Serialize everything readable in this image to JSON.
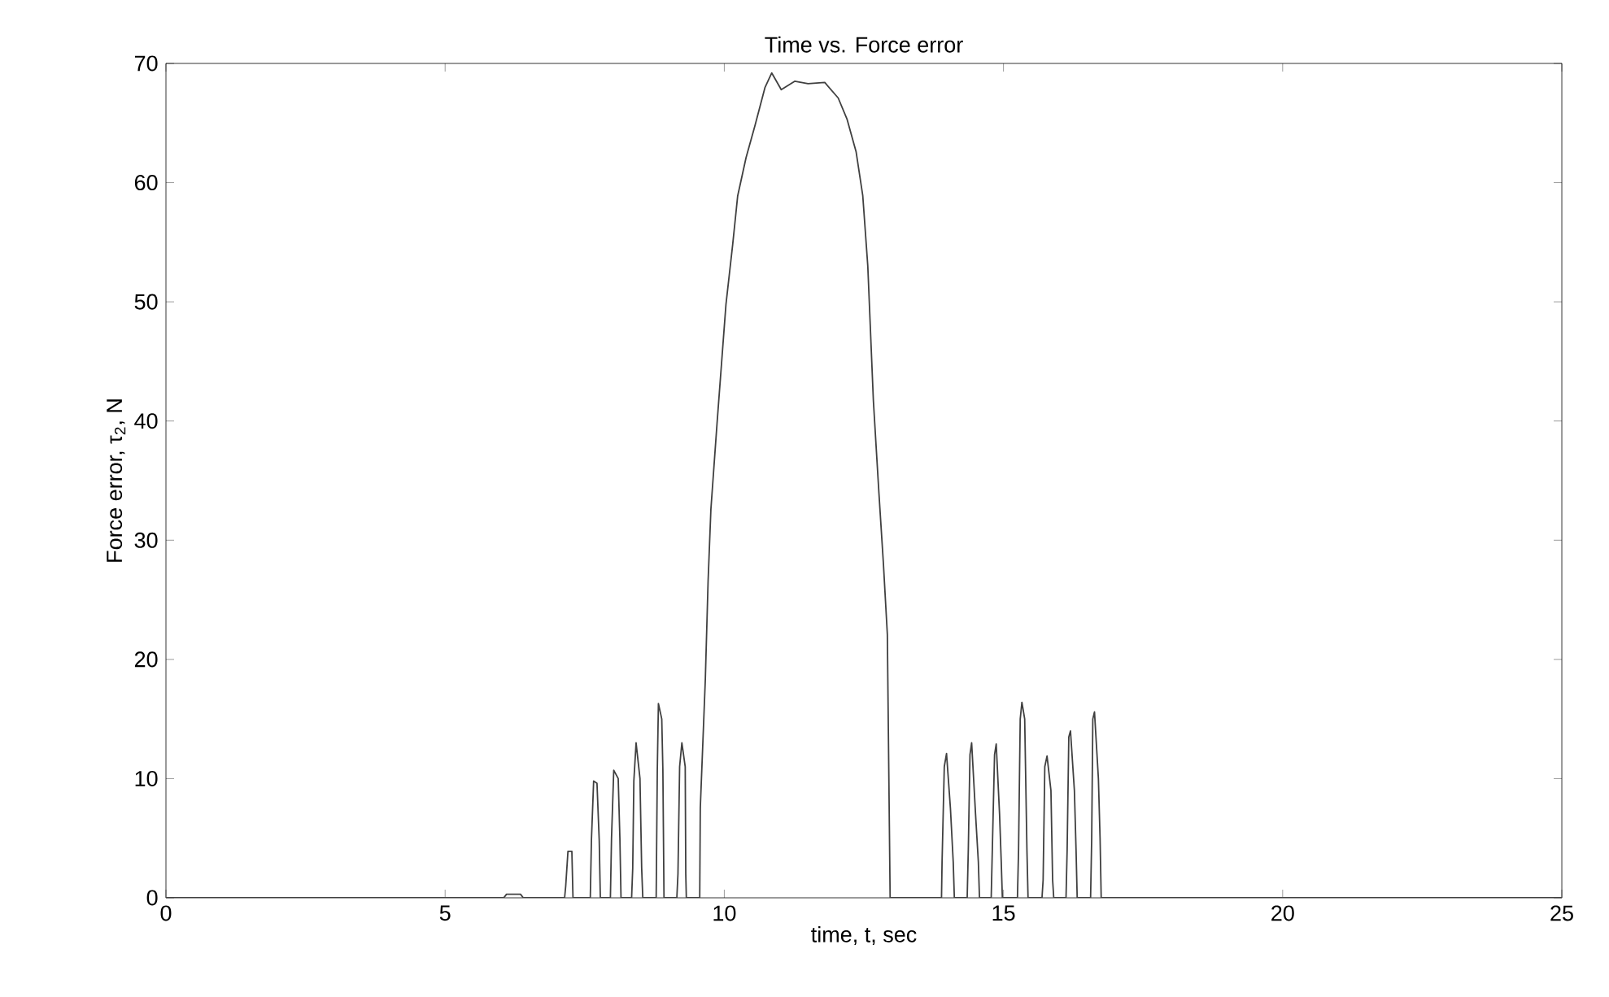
{
  "chart_data": {
    "type": "line",
    "title": "Time vs. Force error",
    "xlabel": "time, t, sec",
    "ylabel": "Force error, τ$_{2}$, N",
    "xlim": [
      0,
      25
    ],
    "ylim": [
      0,
      70
    ],
    "xticks": [
      0,
      5,
      10,
      15,
      20,
      25
    ],
    "yticks": [
      0,
      10,
      20,
      30,
      40,
      50,
      60,
      70
    ],
    "grid": false,
    "series": [
      {
        "color": "#404040",
        "x": [
          0,
          6.05,
          6.1,
          6.35,
          6.4,
          7.14,
          7.16,
          7.2,
          7.27,
          7.29,
          7.6,
          7.62,
          7.66,
          7.72,
          7.76,
          7.78,
          7.96,
          7.98,
          8.02,
          8.1,
          8.13,
          8.15,
          8.34,
          8.36,
          8.38,
          8.42,
          8.49,
          8.52,
          8.54,
          8.78,
          8.8,
          8.82,
          8.88,
          8.9,
          8.92,
          9.15,
          9.17,
          9.2,
          9.24,
          9.3,
          9.31,
          9.32,
          9.56,
          9.57,
          9.66,
          9.71,
          9.76,
          9.87,
          9.95,
          10.03,
          10.15,
          10.24,
          10.39,
          10.55,
          10.73,
          10.85,
          11.02,
          11.26,
          11.5,
          11.8,
          12.04,
          12.2,
          12.36,
          12.48,
          12.57,
          12.67,
          12.77,
          12.85,
          12.92,
          12.97,
          13.89,
          13.9,
          13.94,
          13.98,
          14.05,
          14.1,
          14.12,
          14.35,
          14.37,
          14.4,
          14.43,
          14.5,
          14.55,
          14.57,
          14.78,
          14.8,
          14.84,
          14.87,
          14.93,
          14.96,
          14.98,
          15.25,
          15.27,
          15.3,
          15.33,
          15.38,
          15.42,
          15.44,
          15.69,
          15.71,
          15.74,
          15.78,
          15.85,
          15.88,
          15.9,
          16.12,
          16.14,
          16.17,
          16.2,
          16.27,
          16.3,
          16.32,
          16.56,
          16.58,
          16.6,
          16.63,
          16.7,
          16.73,
          16.75,
          25
        ],
        "values": [
          0,
          0,
          0.3,
          0.3,
          0,
          0,
          1,
          3.9,
          3.9,
          0,
          0,
          4.8,
          9.8,
          9.6,
          4.8,
          0,
          0,
          5,
          10.7,
          10,
          5,
          0,
          0,
          2.5,
          9.8,
          13.0,
          10,
          2.5,
          0,
          0,
          10.7,
          16.3,
          15,
          10.7,
          0,
          0,
          2,
          11,
          13.0,
          11,
          2,
          0,
          0,
          7.5,
          18.3,
          26.6,
          32.6,
          39.8,
          44.8,
          49.8,
          54.8,
          58.9,
          62.1,
          64.8,
          68.0,
          69.2,
          67.8,
          68.5,
          68.3,
          68.4,
          67.1,
          65.3,
          62.6,
          58.9,
          53.0,
          41.7,
          33.9,
          28.0,
          22.1,
          0,
          0,
          3,
          11,
          12.1,
          7.5,
          3,
          0,
          0,
          4,
          12,
          13.0,
          7,
          3,
          0,
          0,
          4,
          12,
          12.9,
          7,
          3,
          0,
          0,
          4,
          15,
          16.4,
          15,
          4,
          0,
          0,
          1.5,
          11,
          11.9,
          9,
          1.5,
          0,
          0,
          4,
          13.5,
          14.0,
          9,
          4,
          0,
          0,
          5,
          15,
          15.6,
          10,
          5,
          0,
          0
        ]
      }
    ]
  }
}
